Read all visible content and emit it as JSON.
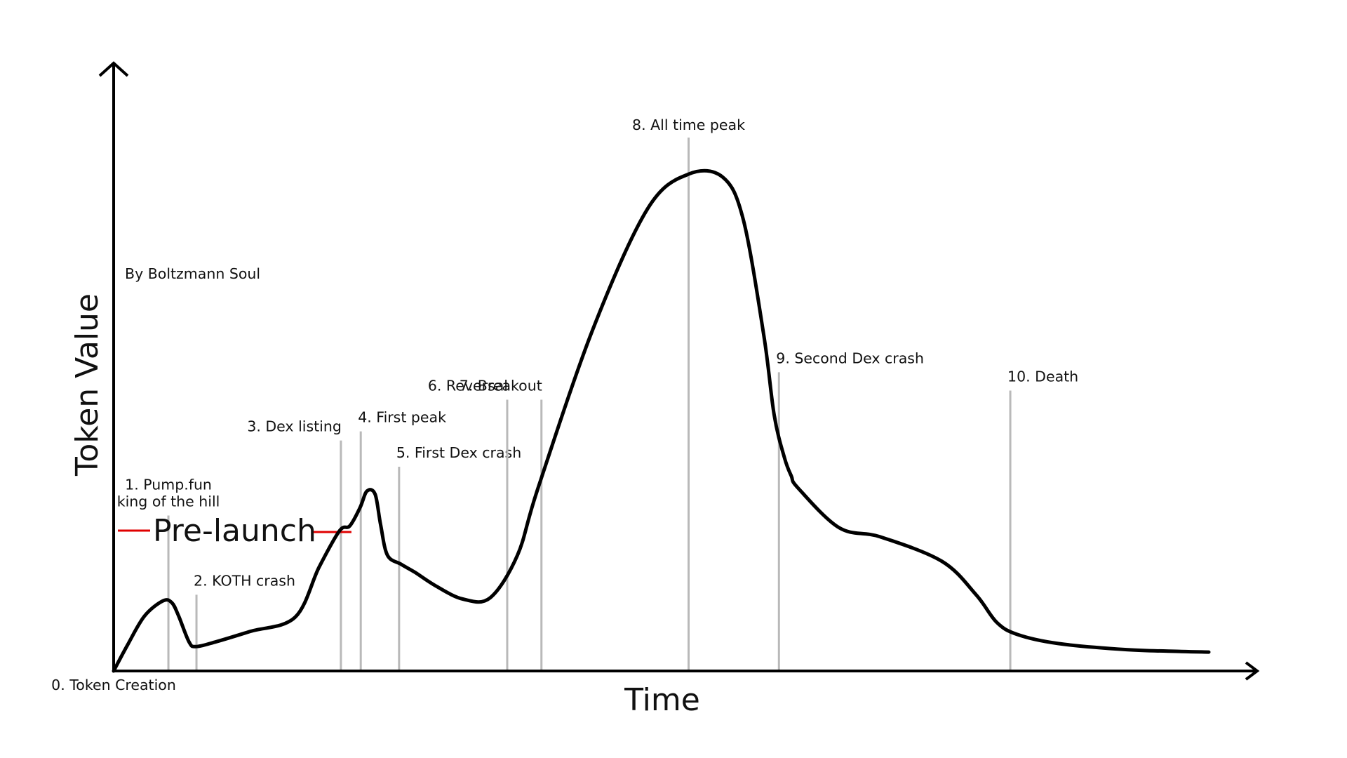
{
  "chart_data": {
    "type": "line",
    "title": "",
    "xlabel": "Time",
    "ylabel": "Token Value",
    "credit": "By Boltzmann Soul",
    "grid": false,
    "legend": "none",
    "series_color": "#000000",
    "marker_color": "#b9b9b9",
    "prelaunch_color": "#e00000",
    "prelaunch": {
      "label": "Pre-launch",
      "start_x": 0,
      "end_x": 330
    },
    "xlim": [
      0,
      1640
    ],
    "ylim": [
      0,
      875
    ],
    "series": [
      {
        "x": [
          0,
          20,
          45,
          72,
          85,
          95,
          110,
          120,
          150,
          200,
          265,
          300,
          330,
          345,
          360,
          370,
          382,
          390,
          400,
          420,
          440,
          470,
          510,
          550,
          590,
          620,
          700,
          780,
          840,
          890,
          920,
          950,
          965,
          980,
          990,
          1000,
          1060,
          1120,
          1210,
          1260,
          1290,
          1320,
          1380,
          1480,
          1560,
          1600
        ],
        "y": [
          0,
          42,
          90,
          115,
          112,
          90,
          48,
          40,
          48,
          65,
          88,
          170,
          230,
          238,
          268,
          295,
          290,
          240,
          190,
          175,
          162,
          140,
          118,
          120,
          190,
          300,
          560,
          758,
          815,
          810,
          740,
          550,
          420,
          350,
          320,
          300,
          235,
          220,
          180,
          125,
          80,
          60,
          45,
          35,
          32,
          31
        ]
      }
    ],
    "markers": [
      {
        "x": 0,
        "y_top": 0,
        "label_lines": [
          "0. Token Creation"
        ],
        "label_anchor": "bottom"
      },
      {
        "x": 80,
        "y_top": 255,
        "label_lines": [
          "1. Pump.fun",
          "king of the hill"
        ],
        "label_anchor": "center"
      },
      {
        "x": 121,
        "y_top": 125,
        "label_lines": [
          "2. KOTH crash"
        ],
        "label_anchor": "start"
      },
      {
        "x": 332,
        "y_top": 378,
        "label_lines": [
          "3. Dex listing"
        ],
        "label_anchor": "end"
      },
      {
        "x": 361,
        "y_top": 393,
        "label_lines": [
          "4. First peak"
        ],
        "label_anchor": "start"
      },
      {
        "x": 417,
        "y_top": 335,
        "label_lines": [
          "5. First Dex crash"
        ],
        "label_anchor": "start"
      },
      {
        "x": 575,
        "y_top": 445,
        "label_lines": [
          "6. Reversal"
        ],
        "label_anchor": "end"
      },
      {
        "x": 625,
        "y_top": 445,
        "label_lines": [
          "7. Breakout"
        ],
        "label_anchor": "end"
      },
      {
        "x": 840,
        "y_top": 875,
        "label_lines": [
          "8. All time peak"
        ],
        "label_anchor": "center"
      },
      {
        "x": 972,
        "y_top": 490,
        "label_lines": [
          "9. Second Dex crash"
        ],
        "label_anchor": "start"
      },
      {
        "x": 1310,
        "y_top": 460,
        "label_lines": [
          "10. Death"
        ],
        "label_anchor": "start"
      }
    ]
  }
}
